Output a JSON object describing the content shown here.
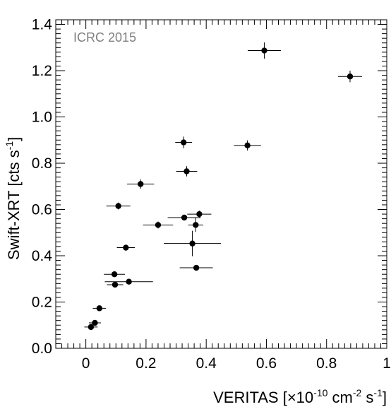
{
  "chart_data": {
    "type": "scatter",
    "annotation": "ICRC 2015",
    "xlabel": {
      "prefix": "VERITAS [×10",
      "exp1": "-10",
      "mid": " cm",
      "exp2": "-2",
      "mid2": " s",
      "exp3": "-1",
      "suffix": "]"
    },
    "ylabel": {
      "prefix": "Swift-XRT [cts s",
      "exp": "-1",
      "suffix": "]"
    },
    "xlim": [
      -0.1,
      1.0
    ],
    "ylim": [
      0.0,
      1.42
    ],
    "x_ticks": [
      0,
      0.2,
      0.4,
      0.6,
      0.8,
      1
    ],
    "x_tick_labels": [
      "0",
      "0.2",
      "0.4",
      "0.6",
      "0.8",
      "1"
    ],
    "y_ticks": [
      0,
      0.2,
      0.4,
      0.6,
      0.8,
      1.0,
      1.2,
      1.4
    ],
    "y_tick_labels": [
      "0.0",
      "0.2",
      "0.4",
      "0.6",
      "0.8",
      "1.0",
      "1.2",
      "1.4"
    ],
    "grid": false,
    "points": [
      {
        "x": 0.017,
        "y": 0.092,
        "xerr": 0.022,
        "yerr": 0.008
      },
      {
        "x": 0.03,
        "y": 0.11,
        "xerr": 0.02,
        "yerr": 0.008
      },
      {
        "x": 0.045,
        "y": 0.173,
        "xerr": 0.022,
        "yerr": 0.01
      },
      {
        "x": 0.097,
        "y": 0.275,
        "xerr": 0.027,
        "yerr": 0.01
      },
      {
        "x": 0.095,
        "y": 0.32,
        "xerr": 0.035,
        "yerr": 0.012
      },
      {
        "x": 0.143,
        "y": 0.288,
        "xerr": 0.08,
        "yerr": 0.01
      },
      {
        "x": 0.133,
        "y": 0.435,
        "xerr": 0.03,
        "yerr": 0.013
      },
      {
        "x": 0.108,
        "y": 0.615,
        "xerr": 0.04,
        "yerr": 0.015
      },
      {
        "x": 0.182,
        "y": 0.71,
        "xerr": 0.045,
        "yerr": 0.02
      },
      {
        "x": 0.24,
        "y": 0.533,
        "xerr": 0.05,
        "yerr": 0.015
      },
      {
        "x": 0.327,
        "y": 0.565,
        "xerr": 0.055,
        "yerr": 0.012
      },
      {
        "x": 0.365,
        "y": 0.533,
        "xerr": 0.025,
        "yerr": 0.03
      },
      {
        "x": 0.377,
        "y": 0.58,
        "xerr": 0.04,
        "yerr": 0.015
      },
      {
        "x": 0.354,
        "y": 0.453,
        "xerr": 0.095,
        "yerr": 0.055
      },
      {
        "x": 0.367,
        "y": 0.348,
        "xerr": 0.055,
        "yerr": 0.01
      },
      {
        "x": 0.325,
        "y": 0.89,
        "xerr": 0.028,
        "yerr": 0.025
      },
      {
        "x": 0.335,
        "y": 0.765,
        "xerr": 0.035,
        "yerr": 0.022
      },
      {
        "x": 0.537,
        "y": 0.877,
        "xerr": 0.045,
        "yerr": 0.022
      },
      {
        "x": 0.593,
        "y": 1.287,
        "xerr": 0.055,
        "yerr": 0.035
      },
      {
        "x": 0.878,
        "y": 1.175,
        "xerr": 0.04,
        "yerr": 0.025
      }
    ]
  }
}
